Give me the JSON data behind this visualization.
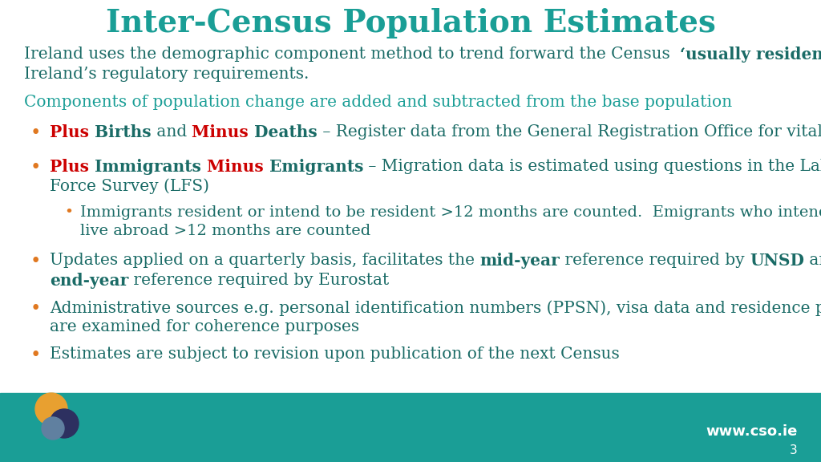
{
  "title": "Inter-Census Population Estimates",
  "title_color": "#1a9e96",
  "bg_color": "#ffffff",
  "footer_color": "#1a9e96",
  "teal_color": "#1a9e96",
  "dark_teal": "#1a6b66",
  "red_color": "#cc0000",
  "orange_bullet": "#e07820",
  "footer_text": "www.cso.ie",
  "footer_number": "3",
  "figw": 10.24,
  "figh": 5.76,
  "dpi": 100
}
